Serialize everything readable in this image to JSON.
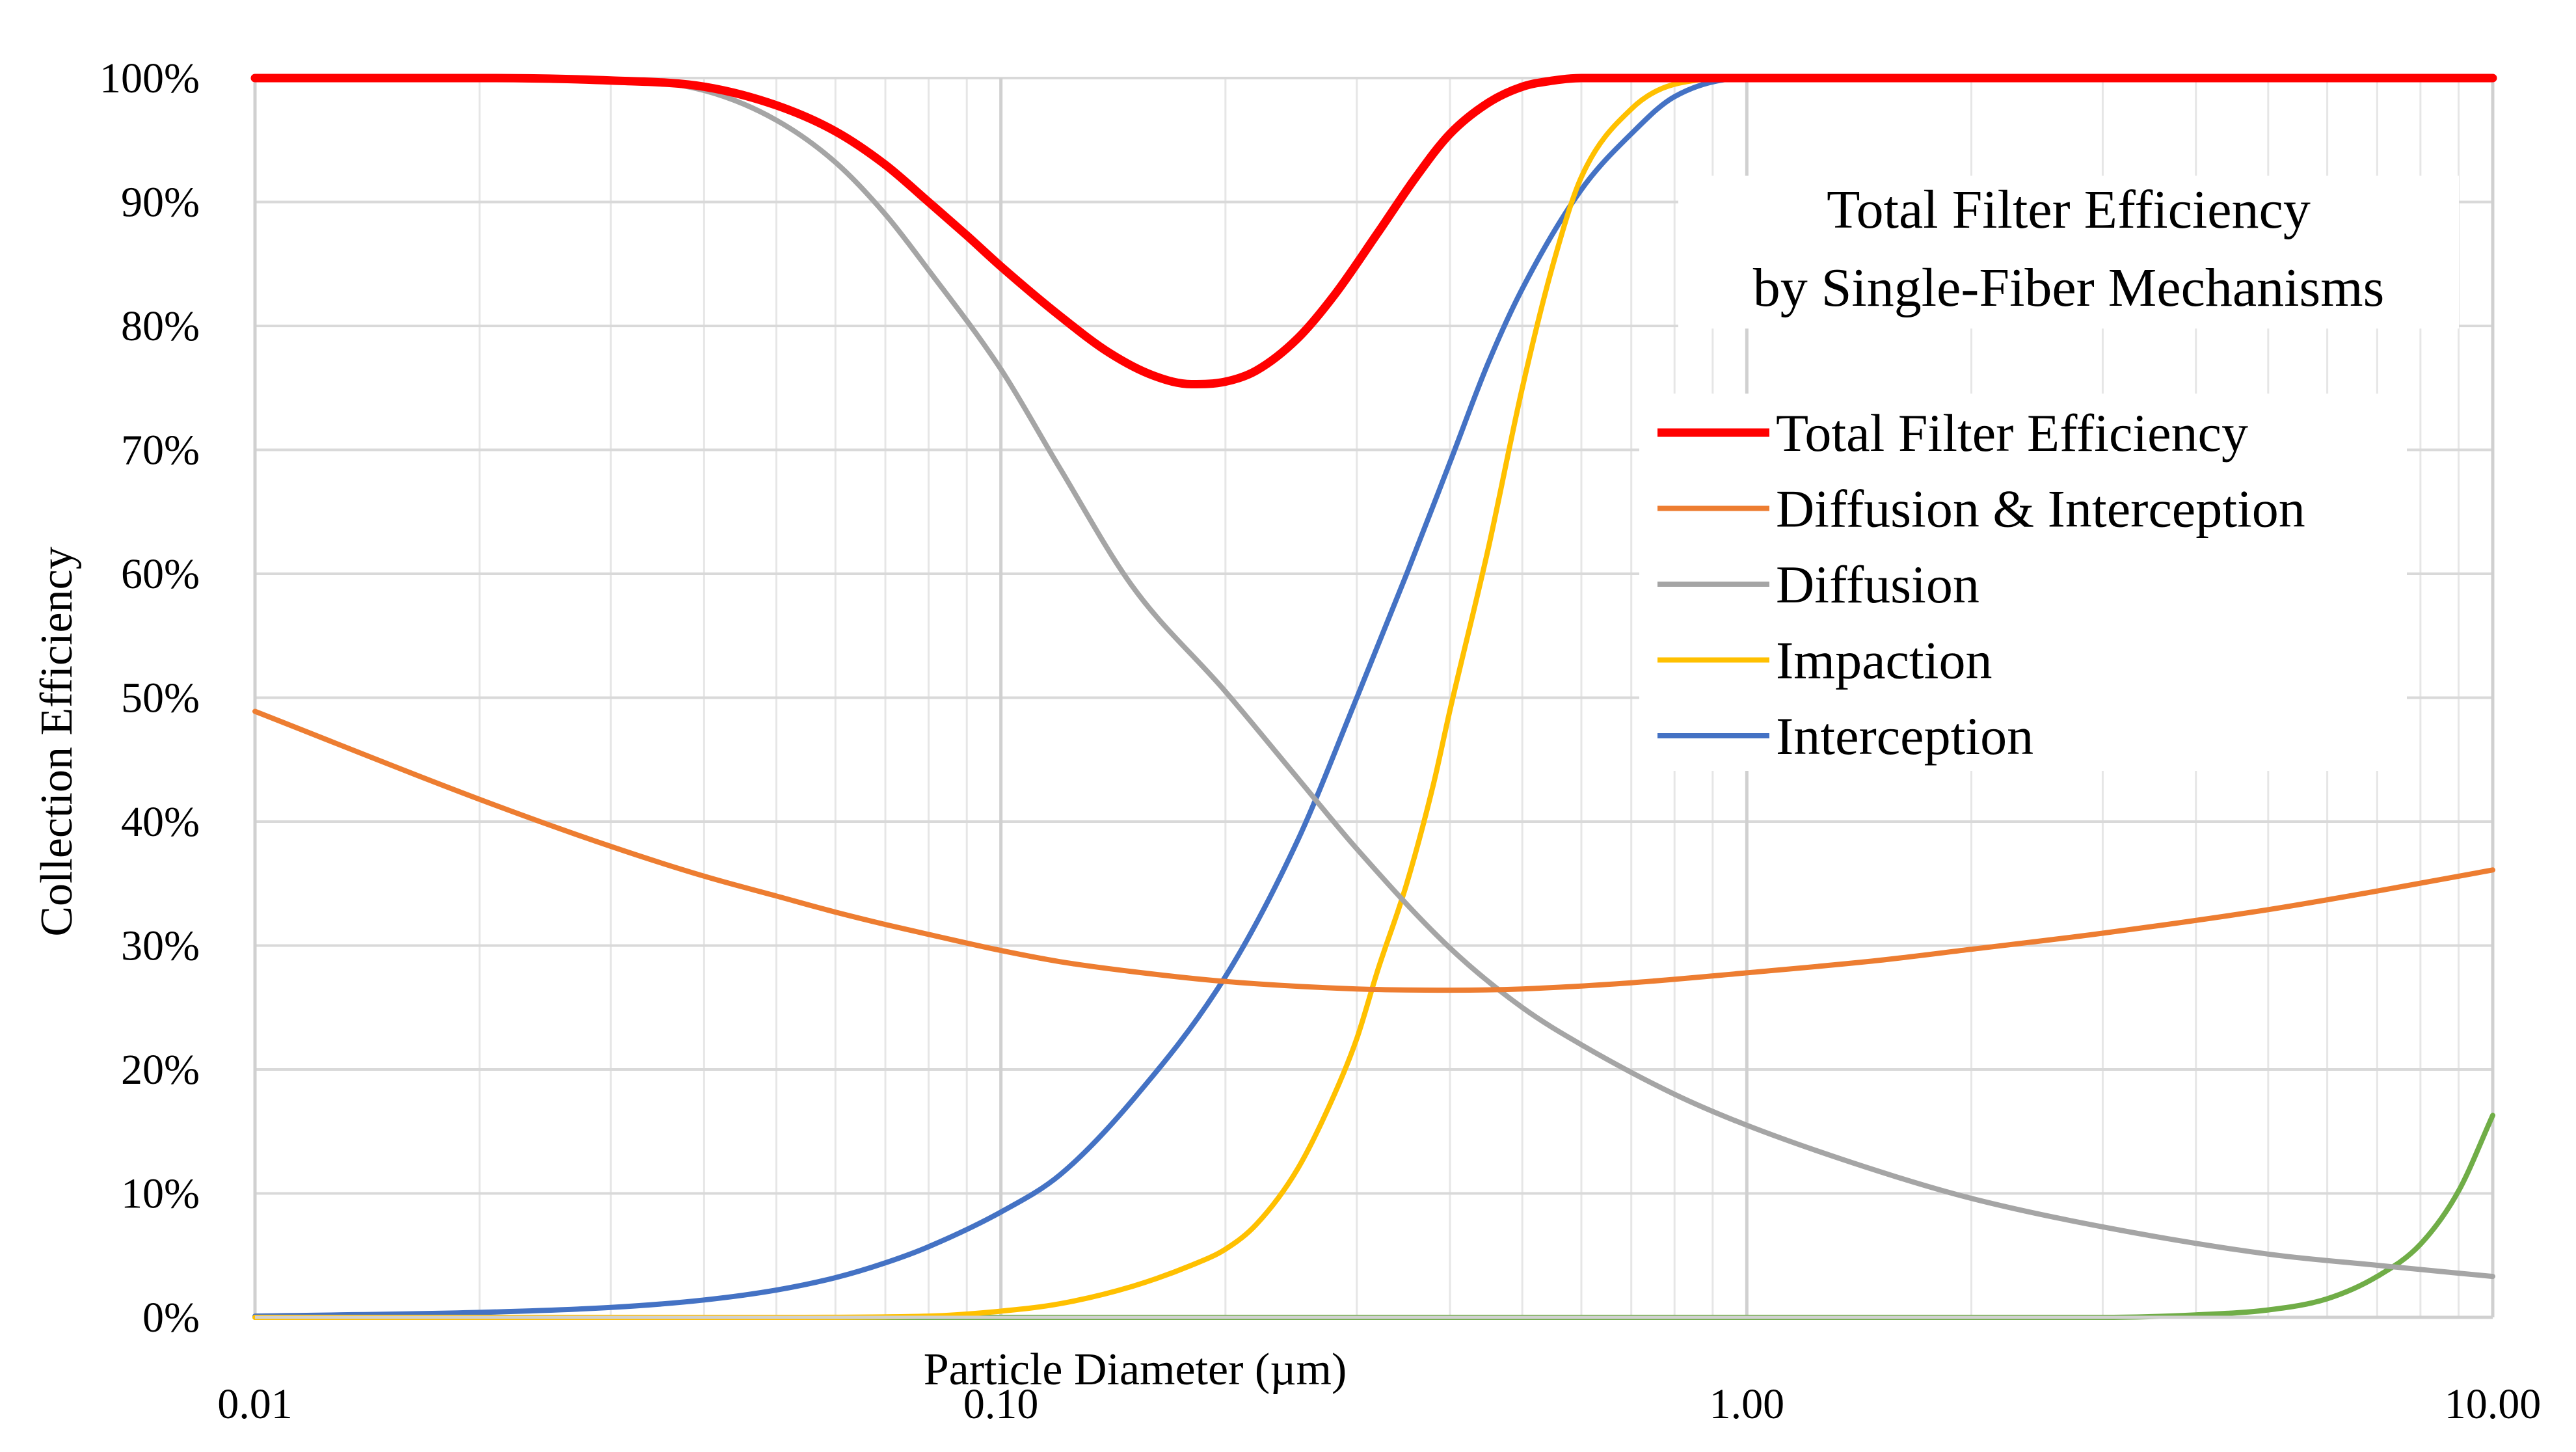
{
  "chart_data": {
    "type": "line",
    "title": "",
    "inset_title": [
      "Total Filter Efficiency",
      "by Single-Fiber Mechanisms"
    ],
    "xlabel": "Particle Diameter (µm)",
    "ylabel": "Collection Efficiency",
    "xscale": "log",
    "xlim": [
      0.01,
      10
    ],
    "ylim": [
      0,
      100
    ],
    "x_ticks": [
      {
        "value": 0.01,
        "label": "0.01"
      },
      {
        "value": 0.1,
        "label": "0.10"
      },
      {
        "value": 1,
        "label": "1.00"
      },
      {
        "value": 10,
        "label": "10.00"
      }
    ],
    "y_ticks": [
      {
        "value": 0,
        "label": "0%"
      },
      {
        "value": 10,
        "label": "10%"
      },
      {
        "value": 20,
        "label": "20%"
      },
      {
        "value": 30,
        "label": "30%"
      },
      {
        "value": 40,
        "label": "40%"
      },
      {
        "value": 50,
        "label": "50%"
      },
      {
        "value": 60,
        "label": "60%"
      },
      {
        "value": 70,
        "label": "70%"
      },
      {
        "value": 80,
        "label": "80%"
      },
      {
        "value": 90,
        "label": "90%"
      },
      {
        "value": 100,
        "label": "100%"
      }
    ],
    "grid": true,
    "legend_position": "right",
    "series": [
      {
        "name": "Total Filter Efficiency",
        "color": "#FF0000",
        "in_legend": true,
        "x": [
          0.01,
          0.02,
          0.03,
          0.04,
          0.05,
          0.06,
          0.07,
          0.08,
          0.09,
          0.1,
          0.12,
          0.14,
          0.16,
          0.18,
          0.2,
          0.22,
          0.25,
          0.28,
          0.32,
          0.36,
          0.4,
          0.45,
          0.5,
          0.55,
          0.6,
          0.7,
          0.8,
          1,
          2,
          5,
          10
        ],
        "y": [
          100,
          100,
          99.8,
          99.3,
          97.8,
          95.7,
          93,
          90,
          87.3,
          84.8,
          80.8,
          77.8,
          76,
          75.3,
          75.5,
          76.4,
          79,
          82.5,
          87.5,
          92,
          95.5,
          98,
          99.3,
          99.8,
          100,
          100,
          100,
          100,
          100,
          100,
          100
        ]
      },
      {
        "name": "Diffusion & Interception",
        "color": "#ED7D31",
        "in_legend": true,
        "x": [
          0.01,
          0.02,
          0.03,
          0.04,
          0.05,
          0.06,
          0.07,
          0.08,
          0.1,
          0.12,
          0.15,
          0.2,
          0.3,
          0.4,
          0.5,
          0.7,
          1,
          1.5,
          2,
          3,
          5,
          7,
          10
        ],
        "y": [
          48.9,
          41.8,
          38,
          35.6,
          34,
          32.7,
          31.7,
          30.9,
          29.6,
          28.7,
          27.9,
          27.1,
          26.5,
          26.4,
          26.5,
          27,
          27.8,
          28.8,
          29.7,
          31,
          32.9,
          34.4,
          36.1
        ]
      },
      {
        "name": "Diffusion",
        "color": "#A5A5A5",
        "in_legend": true,
        "x": [
          0.01,
          0.02,
          0.03,
          0.04,
          0.05,
          0.06,
          0.07,
          0.08,
          0.1,
          0.12,
          0.15,
          0.2,
          0.25,
          0.3,
          0.4,
          0.5,
          0.6,
          0.8,
          1,
          1.5,
          2,
          3,
          5,
          7,
          10
        ],
        "y": [
          100,
          100,
          99.9,
          99,
          96.6,
          93.2,
          89,
          84.5,
          76.5,
          68.5,
          59,
          50.5,
          43.5,
          37.8,
          29.8,
          25,
          22,
          18,
          15.5,
          11.8,
          9.6,
          7.3,
          5.1,
          4.2,
          3.3
        ]
      },
      {
        "name": "Impaction",
        "color": "#FFC000",
        "in_legend": true,
        "x": [
          0.01,
          0.05,
          0.08,
          0.1,
          0.12,
          0.15,
          0.18,
          0.2,
          0.22,
          0.25,
          0.28,
          0.3,
          0.32,
          0.35,
          0.38,
          0.4,
          0.45,
          0.5,
          0.55,
          0.6,
          0.7,
          0.8,
          1,
          2,
          5,
          10
        ],
        "y": [
          0,
          0,
          0.1,
          0.5,
          1.1,
          2.5,
          4.2,
          5.5,
          7.5,
          12,
          18,
          22.5,
          28,
          35,
          43,
          49,
          62,
          75,
          85,
          92,
          97.5,
          99.5,
          100,
          100,
          100,
          100
        ]
      },
      {
        "name": "Interception",
        "color": "#4472C4",
        "in_legend": true,
        "x": [
          0.01,
          0.02,
          0.03,
          0.04,
          0.05,
          0.06,
          0.07,
          0.08,
          0.1,
          0.12,
          0.15,
          0.2,
          0.25,
          0.3,
          0.35,
          0.4,
          0.45,
          0.5,
          0.6,
          0.7,
          0.8,
          1,
          2,
          5,
          10
        ],
        "y": [
          0.1,
          0.4,
          0.8,
          1.4,
          2.2,
          3.2,
          4.4,
          5.7,
          8.5,
          11.5,
          17.5,
          27.5,
          38.5,
          50,
          60,
          69,
          77,
          83,
          91,
          95.5,
          98.5,
          100,
          100,
          100,
          100
        ]
      },
      {
        "name": "Unlabeled (green)",
        "color": "#70AD47",
        "in_legend": false,
        "x": [
          0.01,
          1,
          2,
          3,
          4,
          5,
          6,
          7,
          8,
          9,
          10
        ],
        "y": [
          0,
          0,
          0,
          0,
          0.2,
          0.6,
          1.5,
          3.3,
          5.9,
          10.2,
          16.3
        ]
      }
    ]
  }
}
